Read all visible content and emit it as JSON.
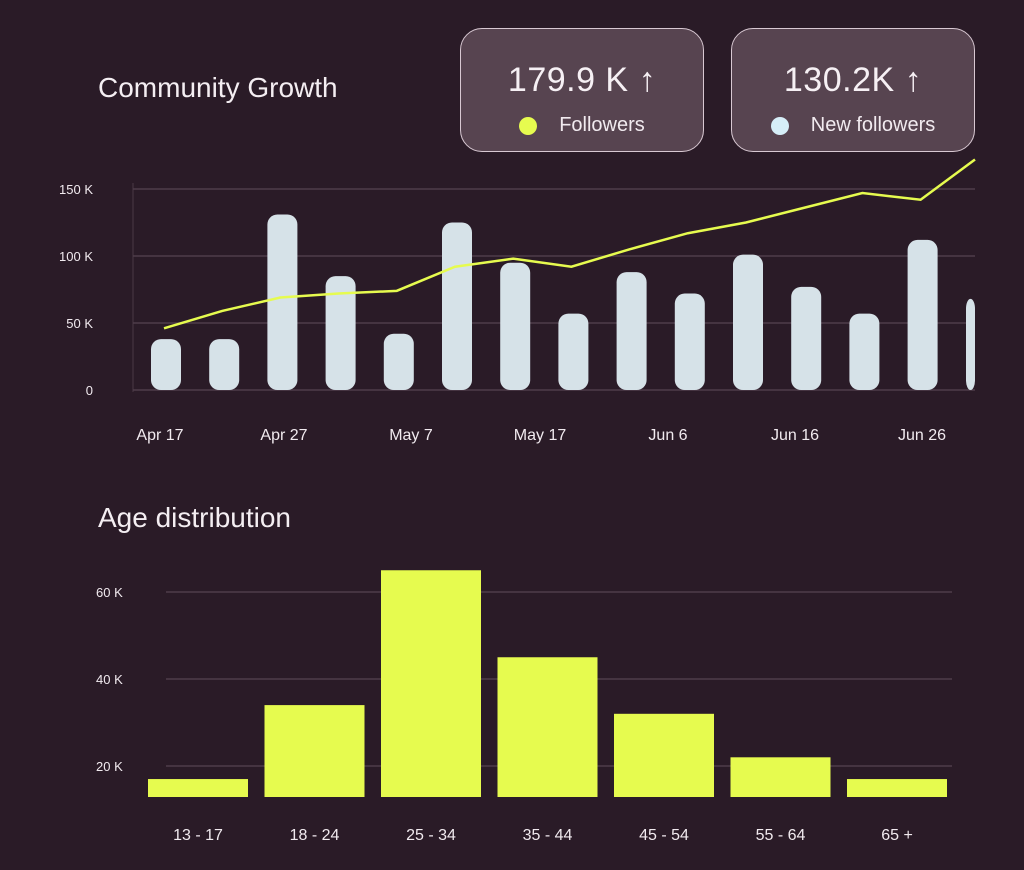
{
  "growth": {
    "title": "Community Growth",
    "cards": [
      {
        "value": "179.9 K",
        "arrow": "↑",
        "label": "Followers",
        "color": "#e6fb4f"
      },
      {
        "value": "130.2K",
        "arrow": "↑",
        "label": "New followers",
        "color": "#d6eef8"
      }
    ]
  },
  "age": {
    "title": "Age distribution"
  },
  "chart_data": [
    {
      "type": "bar+line",
      "title": "Community Growth",
      "ylim": [
        0,
        150000
      ],
      "y_ticks": [
        "0",
        "50 K",
        "100 K",
        "150 K"
      ],
      "y_tick_values": [
        0,
        50000,
        100000,
        150000
      ],
      "x_ticks": [
        "Apr 17",
        "Apr 27",
        "May 7",
        "May 17",
        "Jun 6",
        "Jun 16",
        "Jun 26"
      ],
      "grid": true,
      "series": [
        {
          "name": "New followers",
          "type": "bar",
          "color": "#d6e2e8",
          "values": [
            38000,
            38000,
            131000,
            85000,
            42000,
            125000,
            95000,
            57000,
            88000,
            72000,
            101000,
            77000,
            57000,
            112000,
            68000
          ]
        },
        {
          "name": "Followers",
          "type": "line",
          "color": "#e6fb4f",
          "values": [
            46000,
            59000,
            69000,
            72000,
            74000,
            92000,
            98000,
            92000,
            105000,
            117000,
            125000,
            136000,
            147000,
            142000,
            172000
          ]
        }
      ]
    },
    {
      "type": "bar",
      "title": "Age distribution",
      "categories": [
        "13 - 17",
        "18 - 24",
        "25 - 34",
        "35 - 44",
        "45 - 54",
        "55 - 64",
        "65 +"
      ],
      "values": [
        17000,
        34000,
        65000,
        45000,
        32000,
        22000,
        17000
      ],
      "y_ticks": [
        "20 K",
        "40 K",
        "60 K"
      ],
      "y_tick_values": [
        20000,
        40000,
        60000
      ],
      "color": "#e6fb4f",
      "grid": true
    }
  ]
}
